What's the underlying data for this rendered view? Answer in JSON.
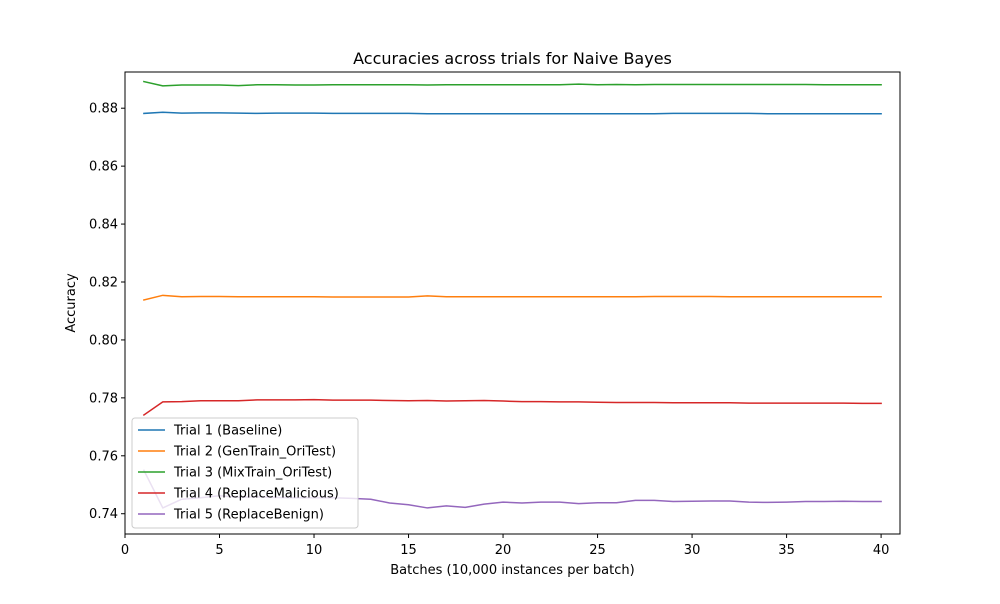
{
  "chart_data": {
    "type": "line",
    "title": "Accuracies across trials for Naive Bayes",
    "xlabel": "Batches (10,000 instances per batch)",
    "ylabel": "Accuracy",
    "xlim": [
      0,
      41
    ],
    "ylim": [
      0.733,
      0.8925
    ],
    "xticks": [
      0,
      5,
      10,
      15,
      20,
      25,
      30,
      35,
      40
    ],
    "xtick_labels": [
      "0",
      "5",
      "10",
      "15",
      "20",
      "25",
      "30",
      "35",
      "40"
    ],
    "yticks": [
      0.74,
      0.76,
      0.78,
      0.8,
      0.82,
      0.84,
      0.86,
      0.88
    ],
    "ytick_labels": [
      "0.74",
      "0.76",
      "0.78",
      "0.80",
      "0.82",
      "0.84",
      "0.86",
      "0.88"
    ],
    "grid": false,
    "legend_position": "lower-left",
    "x": [
      1,
      2,
      3,
      4,
      5,
      6,
      7,
      8,
      9,
      10,
      11,
      12,
      13,
      14,
      15,
      16,
      17,
      18,
      19,
      20,
      21,
      22,
      23,
      24,
      25,
      26,
      27,
      28,
      29,
      30,
      31,
      32,
      33,
      34,
      35,
      36,
      37,
      38,
      39,
      40
    ],
    "series": [
      {
        "name": "Trial 1 (Baseline)",
        "color": "#1f77b4",
        "values": [
          0.8782,
          0.8786,
          0.8783,
          0.8784,
          0.8784,
          0.8783,
          0.8782,
          0.8783,
          0.8783,
          0.8783,
          0.8782,
          0.8782,
          0.8782,
          0.8782,
          0.8782,
          0.8781,
          0.8781,
          0.8781,
          0.8781,
          0.8781,
          0.8781,
          0.8781,
          0.8781,
          0.8781,
          0.8781,
          0.8781,
          0.8781,
          0.8781,
          0.8782,
          0.8782,
          0.8782,
          0.8782,
          0.8782,
          0.8781,
          0.8781,
          0.8781,
          0.8781,
          0.8781,
          0.8781,
          0.8781
        ]
      },
      {
        "name": "Trial 2 (GenTrain_OriTest)",
        "color": "#ff7f0e",
        "values": [
          0.8138,
          0.8154,
          0.8149,
          0.815,
          0.815,
          0.8149,
          0.8149,
          0.8149,
          0.8149,
          0.8149,
          0.8148,
          0.8148,
          0.8148,
          0.8148,
          0.8148,
          0.8152,
          0.8149,
          0.8149,
          0.8149,
          0.8149,
          0.8149,
          0.8149,
          0.8149,
          0.8149,
          0.8149,
          0.8149,
          0.8149,
          0.815,
          0.815,
          0.815,
          0.815,
          0.8149,
          0.8149,
          0.8149,
          0.8149,
          0.8149,
          0.8149,
          0.8149,
          0.8149,
          0.8149
        ]
      },
      {
        "name": "Trial 3 (MixTrain_OriTest)",
        "color": "#2ca02c",
        "values": [
          0.8892,
          0.8877,
          0.888,
          0.888,
          0.888,
          0.8878,
          0.8881,
          0.8881,
          0.888,
          0.888,
          0.8881,
          0.8881,
          0.8881,
          0.8881,
          0.8881,
          0.888,
          0.8881,
          0.8881,
          0.8881,
          0.8881,
          0.8881,
          0.8881,
          0.8881,
          0.8883,
          0.8881,
          0.8882,
          0.8881,
          0.8882,
          0.8882,
          0.8882,
          0.8882,
          0.8882,
          0.8882,
          0.8882,
          0.8882,
          0.8882,
          0.8881,
          0.8881,
          0.8881,
          0.8881
        ]
      },
      {
        "name": "Trial 4 (ReplaceMalicious)",
        "color": "#d62728",
        "values": [
          0.7741,
          0.7786,
          0.7787,
          0.779,
          0.779,
          0.779,
          0.7793,
          0.7793,
          0.7793,
          0.7794,
          0.7792,
          0.7792,
          0.7792,
          0.7791,
          0.779,
          0.7791,
          0.7789,
          0.779,
          0.7791,
          0.7789,
          0.7787,
          0.7787,
          0.7786,
          0.7786,
          0.7785,
          0.7784,
          0.7784,
          0.7784,
          0.7783,
          0.7783,
          0.7783,
          0.7783,
          0.7782,
          0.7782,
          0.7782,
          0.7782,
          0.7782,
          0.7782,
          0.7781,
          0.7781
        ]
      },
      {
        "name": "Trial 5 (ReplaceBenign)",
        "color": "#9467bd",
        "values": [
          0.755,
          0.742,
          0.745,
          0.7455,
          0.7462,
          0.7457,
          0.7458,
          0.7456,
          0.7455,
          0.7455,
          0.7455,
          0.7453,
          0.745,
          0.7437,
          0.7431,
          0.742,
          0.7427,
          0.7422,
          0.7433,
          0.744,
          0.7437,
          0.744,
          0.744,
          0.7435,
          0.7438,
          0.7438,
          0.7446,
          0.7446,
          0.7442,
          0.7443,
          0.7444,
          0.7444,
          0.744,
          0.7439,
          0.744,
          0.7442,
          0.7442,
          0.7443,
          0.7442,
          0.7442
        ]
      }
    ]
  }
}
